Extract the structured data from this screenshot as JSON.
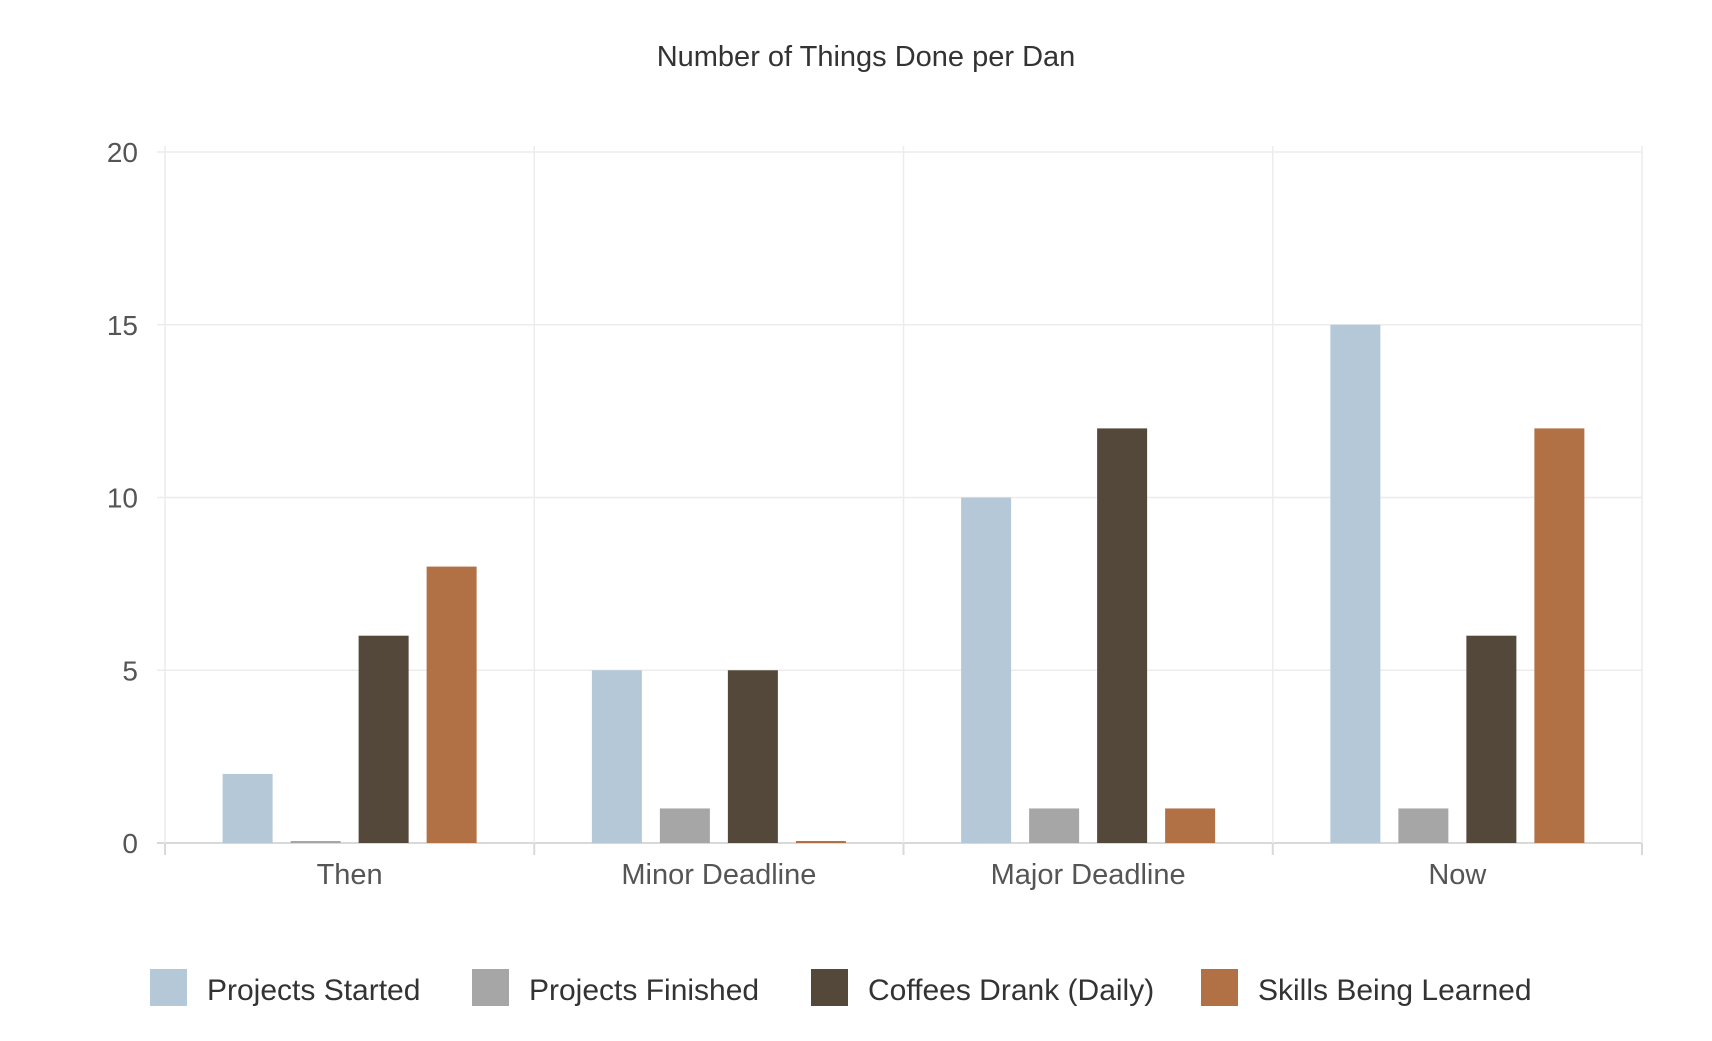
{
  "chart_data": {
    "type": "bar",
    "title": "Number of Things Done per Dan",
    "xlabel": "",
    "ylabel": "",
    "categories": [
      "Then",
      "Minor Deadline",
      "Major Deadline",
      "Now"
    ],
    "ylim": [
      0,
      20
    ],
    "yticks": [
      "0",
      "5",
      "10",
      "15",
      "20"
    ],
    "grid": true,
    "legend_position": "bottom",
    "series": [
      {
        "name": "Projects Started",
        "color": "#b5c8d7",
        "values": [
          2,
          5,
          10,
          15
        ]
      },
      {
        "name": "Projects Finished",
        "color": "#a6a6a6",
        "values": [
          0,
          1,
          1,
          1
        ]
      },
      {
        "name": "Coffees Drank (Daily)",
        "color": "#54483b",
        "values": [
          6,
          5,
          12,
          6
        ]
      },
      {
        "name": "Skills Being Learned",
        "color": "#b27045",
        "values": [
          8,
          0,
          1,
          12
        ]
      }
    ]
  }
}
